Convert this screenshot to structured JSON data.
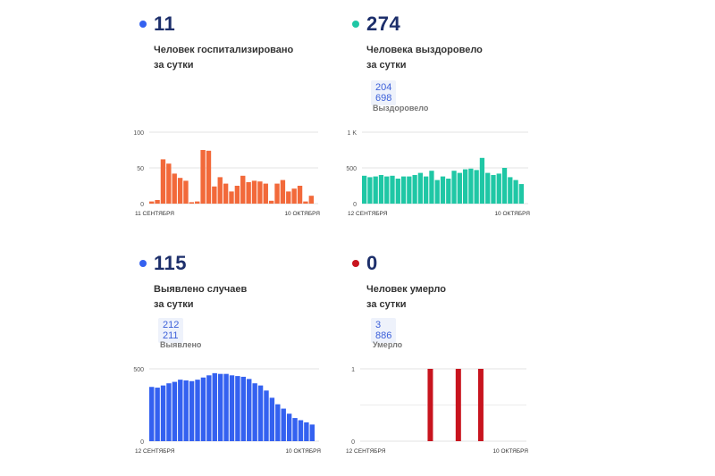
{
  "colors": {
    "hospitalized": "#f2693a",
    "recovered": "#1fc7a5",
    "cases": "#3461f0",
    "deaths": "#c8141e",
    "title": "#1d2f6b"
  },
  "hospitalized": {
    "value": "11",
    "caption_line1": "Человек госпитализировано",
    "caption_line2": "за сутки"
  },
  "recovered": {
    "value": "274",
    "caption_line1": "Человека выздоровело",
    "caption_line2": "за сутки",
    "total": "204 698",
    "total_label": "Выздоровело"
  },
  "cases": {
    "value": "115",
    "caption_line1": "Выявлено случаев",
    "caption_line2": "за сутки",
    "total": "212 211",
    "total_label": "Выявлено"
  },
  "deaths": {
    "value": "0",
    "caption_line1": "Человек умерло",
    "caption_line2": "за сутки",
    "total": "3 886",
    "total_label": "Умерло"
  },
  "chart_data": [
    {
      "type": "bar",
      "id": "hospitalized",
      "x_start_label": "11 СЕНТЯБРЯ",
      "x_end_label": "10 ОКТЯБРЯ",
      "y_ticks": [
        "100",
        "50",
        "0"
      ],
      "ylim": [
        0,
        100
      ],
      "values": [
        3,
        5,
        62,
        56,
        42,
        36,
        32,
        2,
        3,
        75,
        74,
        24,
        37,
        28,
        17,
        25,
        39,
        30,
        32,
        31,
        28,
        4,
        28,
        33,
        17,
        21,
        25,
        3,
        11
      ]
    },
    {
      "type": "bar",
      "id": "recovered",
      "x_start_label": "12 СЕНТЯБРЯ",
      "x_end_label": "10 ОКТЯБРЯ",
      "y_ticks": [
        "1 K",
        "500",
        "0"
      ],
      "ylim": [
        0,
        1000
      ],
      "values": [
        390,
        370,
        380,
        400,
        380,
        390,
        350,
        380,
        380,
        400,
        430,
        380,
        460,
        330,
        380,
        350,
        460,
        430,
        480,
        490,
        470,
        640,
        430,
        400,
        420,
        500,
        370,
        330,
        274
      ]
    },
    {
      "type": "bar",
      "id": "cases",
      "x_start_label": "12 СЕНТЯБРЯ",
      "x_end_label": "10 ОКТЯБРЯ",
      "y_ticks": [
        "500",
        "0"
      ],
      "ylim": [
        0,
        500
      ],
      "values": [
        375,
        370,
        385,
        400,
        410,
        425,
        420,
        415,
        425,
        440,
        455,
        470,
        465,
        465,
        455,
        450,
        445,
        430,
        400,
        385,
        350,
        300,
        255,
        225,
        190,
        160,
        145,
        130,
        115
      ]
    },
    {
      "type": "bar",
      "id": "deaths",
      "x_start_label": "12 СЕНТЯБРЯ",
      "x_end_label": "10 ОКТЯБРЯ",
      "y_ticks": [
        "1",
        "0"
      ],
      "ylim": [
        0,
        1
      ],
      "values": [
        0,
        0,
        0,
        0,
        0,
        0,
        0,
        0,
        0,
        0,
        0,
        0,
        1,
        0,
        0,
        0,
        0,
        1,
        0,
        0,
        0,
        1,
        0,
        0,
        0,
        0,
        0,
        0,
        0
      ]
    }
  ]
}
